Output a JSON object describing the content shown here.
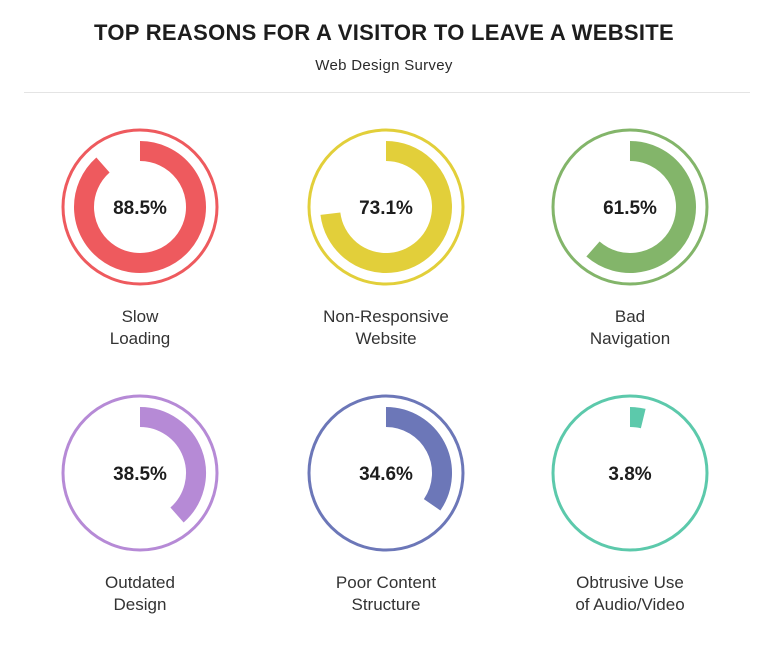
{
  "header": {
    "title": "TOP REASONS FOR A VISITOR TO LEAVE A WEBSITE",
    "subtitle": "Web Design Survey"
  },
  "chart_data": {
    "type": "pie",
    "title": "TOP REASONS FOR A VISITOR TO LEAVE A WEBSITE",
    "subtitle": "Web Design Survey",
    "unit": "%",
    "items": [
      {
        "label_lines": [
          "Slow",
          "Loading"
        ],
        "value": 88.5,
        "value_label": "88.5%",
        "color": "#ee5a5e"
      },
      {
        "label_lines": [
          "Non-Responsive",
          "Website"
        ],
        "value": 73.1,
        "value_label": "73.1%",
        "color": "#e2cf3a"
      },
      {
        "label_lines": [
          "Bad",
          "Navigation"
        ],
        "value": 61.5,
        "value_label": "61.5%",
        "color": "#83b56a"
      },
      {
        "label_lines": [
          "Outdated",
          "Design"
        ],
        "value": 38.5,
        "value_label": "38.5%",
        "color": "#b68ad6"
      },
      {
        "label_lines": [
          "Poor Content",
          "Structure"
        ],
        "value": 34.6,
        "value_label": "34.6%",
        "color": "#6c77b8"
      },
      {
        "label_lines": [
          "Obtrusive Use",
          "of Audio/Video"
        ],
        "value": 3.8,
        "value_label": "3.8%",
        "color": "#5cc9ab"
      }
    ]
  }
}
